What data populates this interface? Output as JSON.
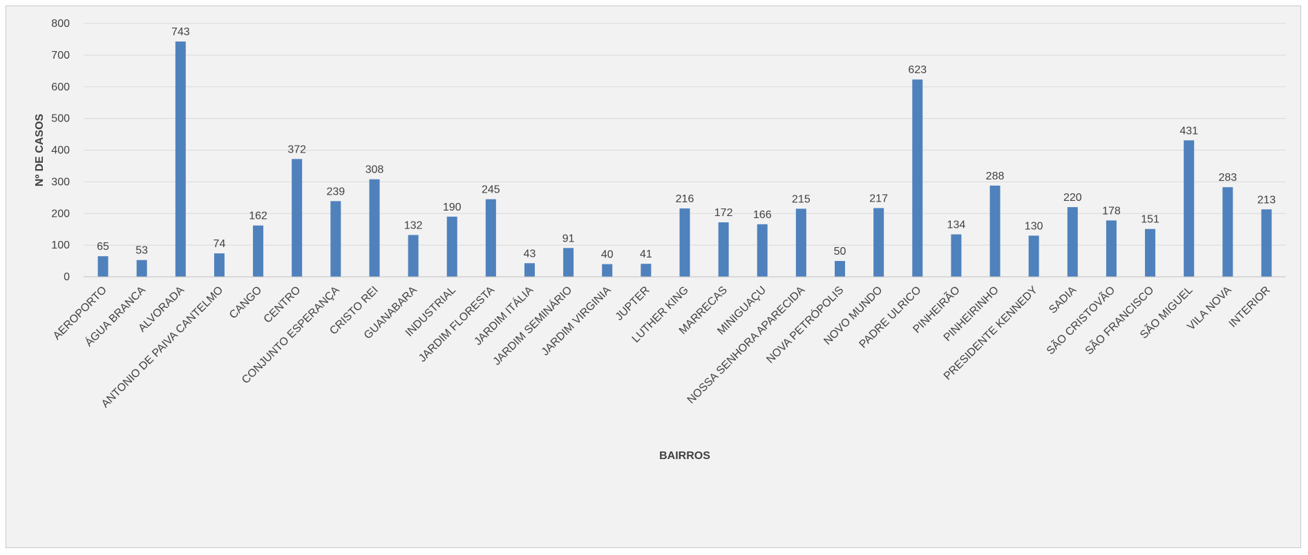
{
  "chart_data": {
    "type": "bar",
    "title": "",
    "xlabel": "BAIRROS",
    "ylabel": "Nº DE CASOS",
    "ylim": [
      0,
      800
    ],
    "yticks": [
      0,
      100,
      200,
      300,
      400,
      500,
      600,
      700,
      800
    ],
    "grid": true,
    "bar_color": "#4f81bd",
    "categories": [
      "AEROPORTO",
      "ÁGUA BRANCA",
      "ALVORADA",
      "ANTONIO DE PAIVA CANTELMO",
      "CANGO",
      "CENTRO",
      "CONJUNTO ESPERANÇA",
      "CRISTO REI",
      "GUANABARA",
      "INDUSTRIAL",
      "JARDIM FLORESTA",
      "JARDIM ITÁLIA",
      "JARDIM SEMINÁRIO",
      "JARDIM VIRGINIA",
      "JUPTER",
      "LUTHER KING",
      "MARRECAS",
      "MINIGUAÇU",
      "NOSSA SENHORA APARECIDA",
      "NOVA PETRÓPOLIS",
      "NOVO MUNDO",
      "PADRE ULRICO",
      "PINHEIRÃO",
      "PINHEIRINHO",
      "PRESIDENTE KENNEDY",
      "SADIA",
      "SÃO CRISTOVÃO",
      "SÃO FRANCISCO",
      "SÃO MIGUEL",
      "VILA NOVA",
      "INTERIOR"
    ],
    "values": [
      65,
      53,
      743,
      74,
      162,
      372,
      239,
      308,
      132,
      190,
      245,
      43,
      91,
      40,
      41,
      216,
      172,
      166,
      215,
      50,
      217,
      623,
      134,
      288,
      130,
      220,
      178,
      151,
      431,
      283,
      213
    ]
  }
}
